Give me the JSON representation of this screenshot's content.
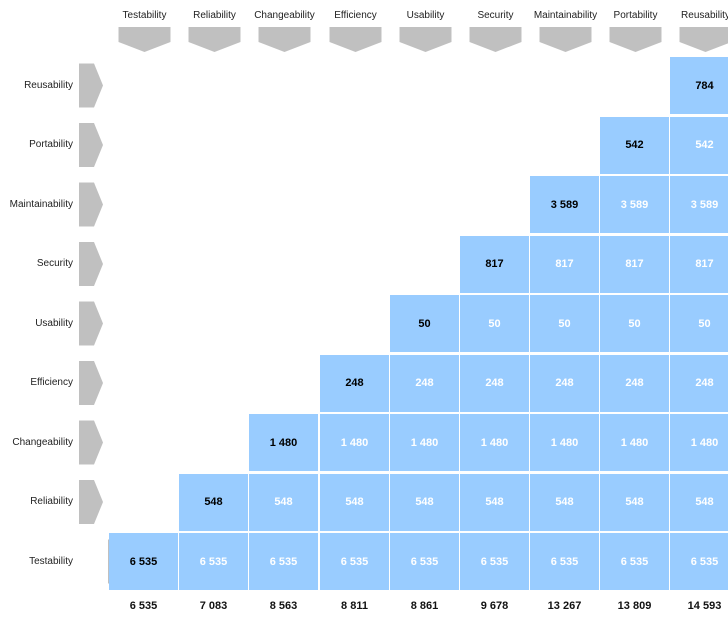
{
  "chart_data": {
    "type": "heatmap",
    "categories": [
      "Testability",
      "Reliability",
      "Changeability",
      "Efficiency",
      "Usability",
      "Security",
      "Maintainability",
      "Portability",
      "Reusability"
    ],
    "row_labels": [
      "Reusability",
      "Portability",
      "Maintainability",
      "Security",
      "Usability",
      "Efficiency",
      "Changeability",
      "Reliability",
      "Testability"
    ],
    "characteristic_values": [
      6535,
      548,
      1480,
      248,
      50,
      817,
      3589,
      542,
      784
    ],
    "cell_text": [
      "6 535",
      "548",
      "1 480",
      "248",
      "50",
      "817",
      "3 589",
      "542",
      "784"
    ],
    "totals": [
      "6 535",
      "7 083",
      "8 563",
      "8 811",
      "8 861",
      "9 678",
      "13 267",
      "13 809",
      "14 593"
    ],
    "total_values": [
      6535,
      7083,
      8563,
      8811,
      8861,
      9678,
      13267,
      13809,
      14593
    ],
    "cell_color": "#99ccff",
    "chevron_color": "#c0c0c0"
  }
}
